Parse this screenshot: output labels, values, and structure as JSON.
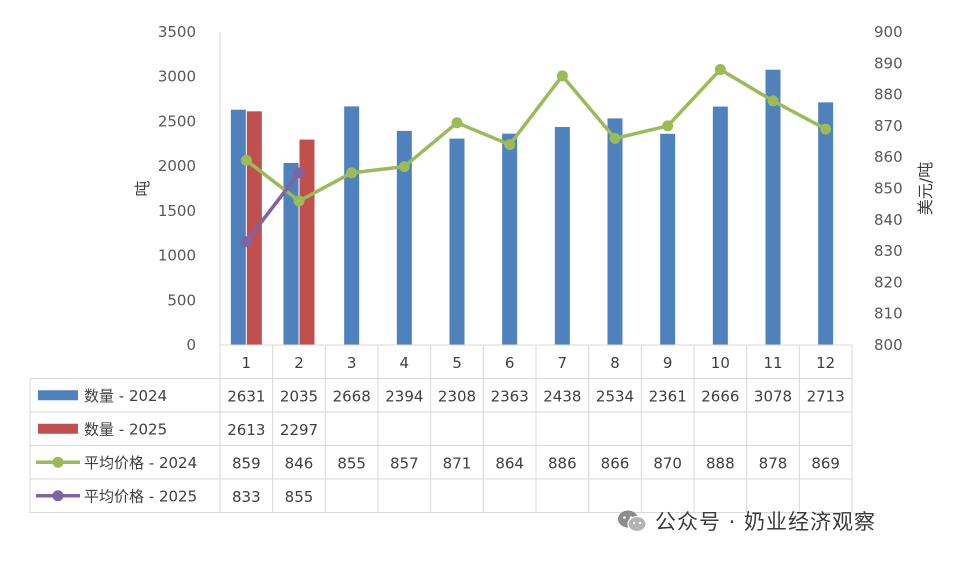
{
  "chart_data": {
    "type": "bar",
    "categories": [
      "1",
      "2",
      "3",
      "4",
      "5",
      "6",
      "7",
      "8",
      "9",
      "10",
      "11",
      "12"
    ],
    "ylabel": "吨",
    "ylabel_right": "美元/吨",
    "ylim": [
      0,
      3500
    ],
    "yticks": [
      0,
      500,
      1000,
      1500,
      2000,
      2500,
      3000,
      3500
    ],
    "ylim_right": [
      800,
      900
    ],
    "yticks_right": [
      800,
      810,
      820,
      830,
      840,
      850,
      860,
      870,
      880,
      890,
      900
    ],
    "grid": false,
    "legend_placement": "data-table-below",
    "series": [
      {
        "name": "数量 - 2024",
        "type": "bar",
        "axis": "left",
        "color": "#4f81bd",
        "values": [
          2631,
          2035,
          2668,
          2394,
          2308,
          2363,
          2438,
          2534,
          2361,
          2666,
          3078,
          2713
        ]
      },
      {
        "name": "数量 - 2025",
        "type": "bar",
        "axis": "left",
        "color": "#c0504d",
        "values": [
          2613,
          2297,
          null,
          null,
          null,
          null,
          null,
          null,
          null,
          null,
          null,
          null
        ]
      },
      {
        "name": "平均价格 - 2024",
        "type": "line",
        "axis": "right",
        "color": "#9bbb59",
        "values": [
          859,
          846,
          855,
          857,
          871,
          864,
          886,
          866,
          870,
          888,
          878,
          869
        ]
      },
      {
        "name": "平均价格 - 2025",
        "type": "line",
        "axis": "right",
        "color": "#8064a2",
        "values": [
          833,
          855,
          null,
          null,
          null,
          null,
          null,
          null,
          null,
          null,
          null,
          null
        ]
      }
    ]
  },
  "watermark": {
    "text": "公众号 · 奶业经济观察",
    "icon": "wechat-icon"
  }
}
